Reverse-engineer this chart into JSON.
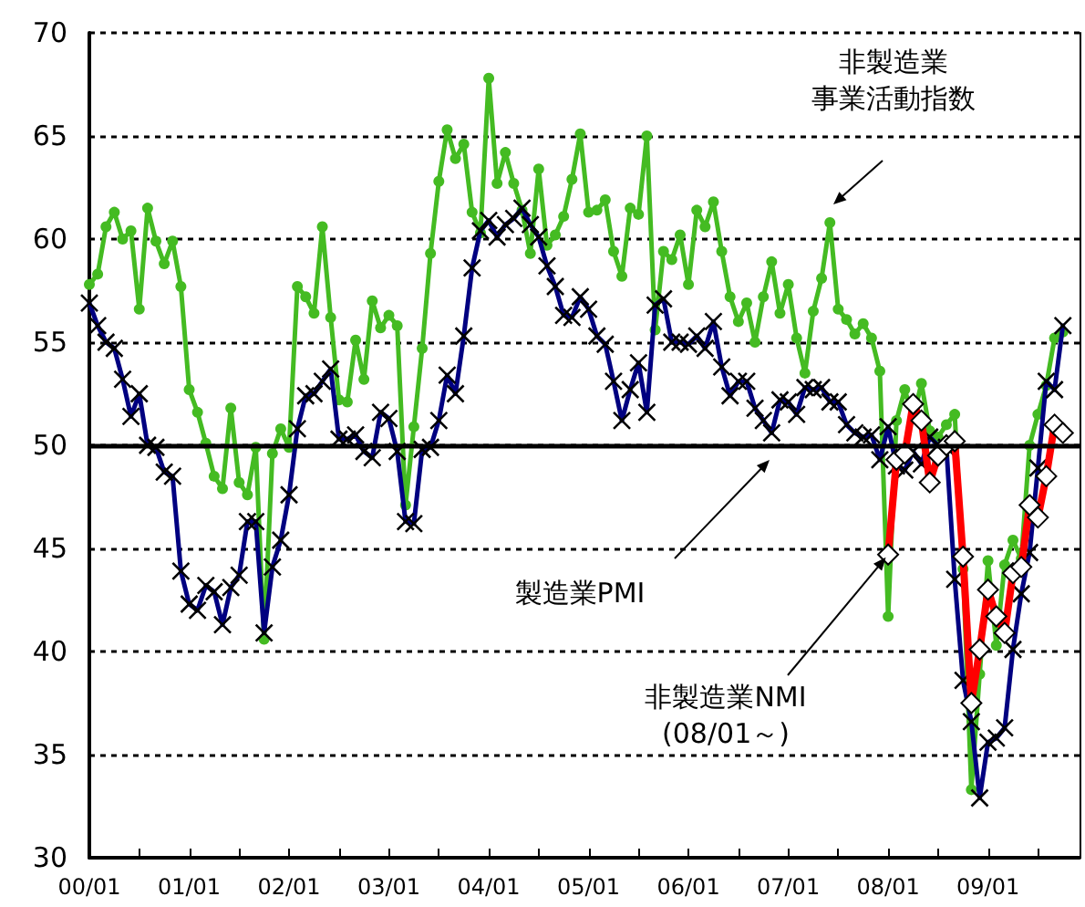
{
  "chart_data": {
    "type": "line",
    "categories": [
      "00/01",
      null,
      null,
      null,
      null,
      null,
      null,
      null,
      null,
      null,
      null,
      null,
      "01/01",
      null,
      null,
      null,
      null,
      null,
      null,
      null,
      null,
      null,
      null,
      null,
      "02/01",
      null,
      null,
      null,
      null,
      null,
      null,
      null,
      null,
      null,
      null,
      null,
      "03/01",
      null,
      null,
      null,
      null,
      null,
      null,
      null,
      null,
      null,
      null,
      null,
      "04/01",
      null,
      null,
      null,
      null,
      null,
      null,
      null,
      null,
      null,
      null,
      null,
      "05/01",
      null,
      null,
      null,
      null,
      null,
      null,
      null,
      null,
      null,
      null,
      null,
      "06/01",
      null,
      null,
      null,
      null,
      null,
      null,
      null,
      null,
      null,
      null,
      null,
      "07/01",
      null,
      null,
      null,
      null,
      null,
      null,
      null,
      null,
      null,
      null,
      null,
      "08/01",
      null,
      null,
      null,
      null,
      null,
      null,
      null,
      null,
      null,
      null,
      null,
      "09/01",
      null,
      null,
      null,
      null,
      null,
      null,
      null,
      null,
      null,
      null,
      null
    ],
    "series": [
      {
        "color": "#44bb22",
        "marker": "circle",
        "values": [
          57.8,
          58.3,
          60.6,
          61.3,
          60.0,
          60.4,
          56.6,
          61.5,
          59.9,
          58.8,
          59.9,
          57.7,
          52.7,
          51.6,
          50.1,
          48.5,
          47.9,
          51.8,
          48.2,
          47.6,
          49.9,
          40.6,
          49.6,
          50.8,
          49.9,
          57.7,
          57.2,
          56.4,
          60.6,
          56.2,
          52.2,
          52.1,
          55.1,
          53.2,
          57.0,
          55.7,
          56.3,
          55.8,
          47.1,
          50.9,
          54.7,
          59.3,
          62.8,
          65.3,
          63.9,
          64.6,
          61.3,
          60.3,
          67.8,
          62.7,
          64.2,
          62.7,
          61.4,
          59.3,
          63.4,
          59.7,
          60.2,
          61.1,
          62.9,
          65.1,
          61.3,
          61.4,
          61.9,
          59.4,
          58.2,
          61.5,
          61.2,
          65.0,
          55.6,
          59.4,
          59.0,
          60.2,
          57.8,
          61.4,
          60.6,
          61.8,
          59.4,
          57.2,
          56.0,
          56.9,
          55.0,
          57.2,
          58.9,
          56.4,
          57.8,
          55.2,
          53.5,
          56.5,
          58.1,
          60.8,
          56.6,
          56.1,
          55.4,
          55.9,
          55.2,
          53.6,
          41.7,
          51.2,
          52.7,
          51.3,
          53.0,
          50.7,
          50.4,
          51.0,
          51.5,
          44.0,
          33.3,
          38.9,
          44.4,
          40.3,
          44.2,
          45.4,
          44.5,
          50.0,
          51.5,
          52.9,
          55.2,
          55.5,
          null,
          null
        ]
      },
      {
        "color": "#000080",
        "marker": "cross",
        "values": [
          56.9,
          55.8,
          55.0,
          54.7,
          53.2,
          51.4,
          52.5,
          50.0,
          49.9,
          48.7,
          48.5,
          43.9,
          42.3,
          42.0,
          43.2,
          42.9,
          41.3,
          43.1,
          43.7,
          46.3,
          46.3,
          40.9,
          44.1,
          45.4,
          47.6,
          50.8,
          52.4,
          52.5,
          53.1,
          53.7,
          50.3,
          50.3,
          50.5,
          49.7,
          49.4,
          51.6,
          51.3,
          49.7,
          46.3,
          46.2,
          49.8,
          49.9,
          51.2,
          53.4,
          52.5,
          55.3,
          58.6,
          60.4,
          60.9,
          60.1,
          60.7,
          61.0,
          61.5,
          60.7,
          60.1,
          58.7,
          57.7,
          56.3,
          56.2,
          57.2,
          56.6,
          55.3,
          54.9,
          53.1,
          51.2,
          52.7,
          54.0,
          51.6,
          56.8,
          57.1,
          55.0,
          55.0,
          54.9,
          55.3,
          54.7,
          56.0,
          53.8,
          52.4,
          53.1,
          53.1,
          51.8,
          51.2,
          50.6,
          52.2,
          52.1,
          51.5,
          52.8,
          52.7,
          52.8,
          52.1,
          52.1,
          51.0,
          50.6,
          50.4,
          50.5,
          49.3,
          50.9,
          49.0,
          48.8,
          49.7,
          49.1,
          50.4,
          50.0,
          49.9,
          43.5,
          38.6,
          36.6,
          32.9,
          35.6,
          35.8,
          36.3,
          40.1,
          42.8,
          44.8,
          48.9,
          53.1,
          52.7,
          55.8,
          null,
          null
        ]
      },
      {
        "color": "#ff0000",
        "marker": "diamond",
        "values": [
          null,
          null,
          null,
          null,
          null,
          null,
          null,
          null,
          null,
          null,
          null,
          null,
          null,
          null,
          null,
          null,
          null,
          null,
          null,
          null,
          null,
          null,
          null,
          null,
          null,
          null,
          null,
          null,
          null,
          null,
          null,
          null,
          null,
          null,
          null,
          null,
          null,
          null,
          null,
          null,
          null,
          null,
          null,
          null,
          null,
          null,
          null,
          null,
          null,
          null,
          null,
          null,
          null,
          null,
          null,
          null,
          null,
          null,
          null,
          null,
          null,
          null,
          null,
          null,
          null,
          null,
          null,
          null,
          null,
          null,
          null,
          null,
          null,
          null,
          null,
          null,
          null,
          null,
          null,
          null,
          null,
          null,
          null,
          null,
          null,
          null,
          null,
          null,
          null,
          null,
          null,
          null,
          null,
          null,
          null,
          null,
          44.7,
          49.3,
          49.6,
          52.0,
          51.2,
          48.2,
          49.5,
          50.0,
          50.2,
          44.6,
          37.5,
          40.1,
          43.0,
          41.7,
          40.9,
          43.8,
          44.1,
          47.1,
          46.5,
          48.5,
          51.0,
          50.6,
          null,
          null
        ]
      }
    ],
    "ylim": [
      30,
      70
    ],
    "yticks": [
      30,
      35,
      40,
      45,
      50,
      55,
      60,
      65,
      70
    ],
    "grid": "y",
    "line_style": "solid",
    "annotations": [
      "非製造業事業活動指数",
      "製造業PMI",
      {
        "text": "非製造業NMI\n(08/01～)",
        "x": "08/01",
        "y": 44.7
      }
    ],
    "ref_lines": [
      {
        "axis": "y",
        "value": 50,
        "color": "#000000"
      }
    ]
  }
}
